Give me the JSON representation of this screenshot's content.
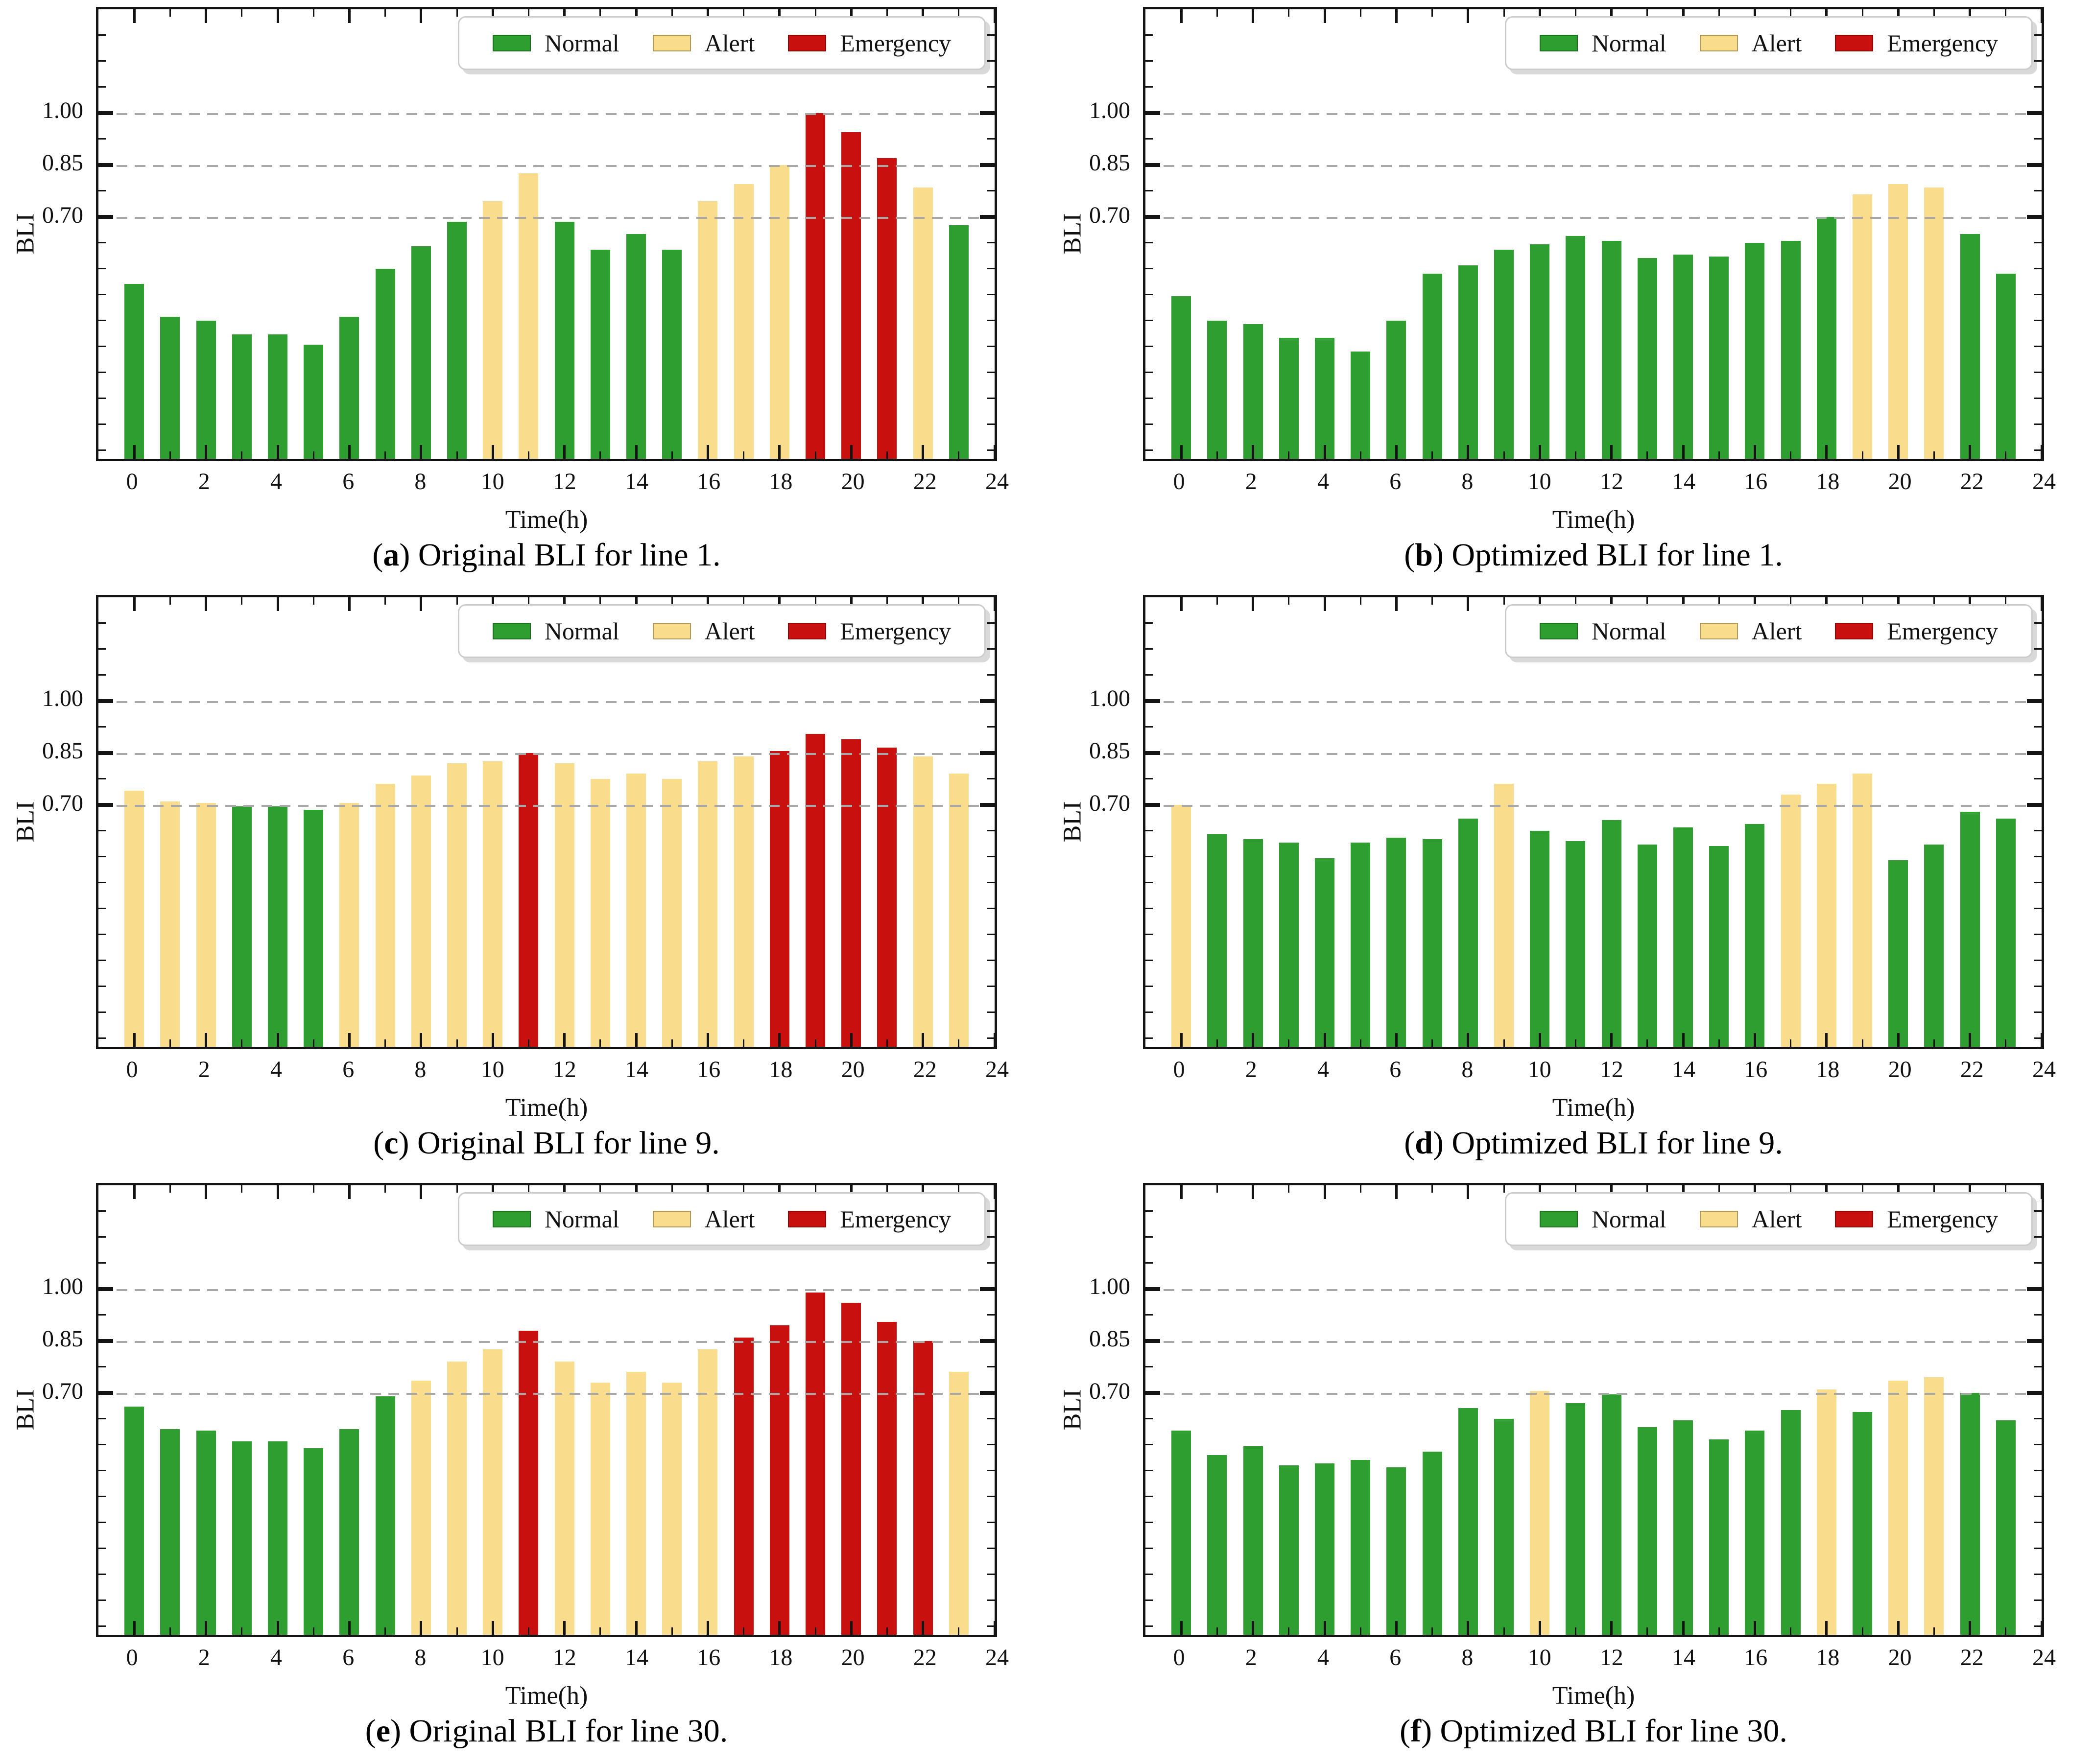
{
  "figure": {
    "background": "#FFFFFF",
    "layout": "2x3-grid-of-bar-charts"
  },
  "legend": {
    "labels": [
      "Normal",
      "Alert",
      "Emergency"
    ],
    "position": "upper right"
  },
  "axis": {
    "xlabel": "Time(h)",
    "ylabel": "BLI",
    "xticks": [
      0,
      2,
      4,
      6,
      8,
      10,
      12,
      14,
      16,
      18,
      20,
      22,
      24
    ],
    "minor_xticks": [
      1,
      3,
      5,
      7,
      9,
      11,
      13,
      15,
      17,
      19,
      21,
      23
    ],
    "ytick_labels": [
      "0.70",
      "0.85",
      "1.00"
    ],
    "ytick_values": [
      0.7,
      0.85,
      1.0
    ],
    "ylim": [
      0,
      1.3
    ],
    "xlim": [
      -1,
      24
    ],
    "grid": "horizontal-dashed"
  },
  "colors": {
    "normal": "#2E9E30",
    "alert": "#F9DD8C",
    "emergency": "#C8100F",
    "grid": "#A8A8A8",
    "spine": "#141414",
    "legend_border": "#CCCCCC"
  },
  "chart_data": [
    {
      "id": "a",
      "type": "bar",
      "caption_letter": "a",
      "caption_text": ") Original BLI for line 1.",
      "caption_open": "(",
      "xlabel": "Time(h)",
      "ylabel": "BLI",
      "hours": [
        0,
        1,
        2,
        3,
        4,
        5,
        6,
        7,
        8,
        9,
        10,
        11,
        12,
        13,
        14,
        15,
        16,
        17,
        18,
        19,
        20,
        21,
        22,
        23
      ],
      "values": [
        0.505,
        0.41,
        0.4,
        0.36,
        0.36,
        0.33,
        0.41,
        0.55,
        0.615,
        0.685,
        0.745,
        0.825,
        0.685,
        0.605,
        0.65,
        0.605,
        0.745,
        0.795,
        0.85,
        1.0,
        0.945,
        0.87,
        0.785,
        0.675
      ],
      "status": [
        "normal",
        "normal",
        "normal",
        "normal",
        "normal",
        "normal",
        "normal",
        "normal",
        "normal",
        "normal",
        "alert",
        "alert",
        "normal",
        "normal",
        "normal",
        "normal",
        "alert",
        "alert",
        "alert",
        "emergency",
        "emergency",
        "emergency",
        "alert",
        "normal"
      ]
    },
    {
      "id": "b",
      "type": "bar",
      "caption_letter": "b",
      "caption_text": ") Optimized BLI for line 1.",
      "caption_open": "(",
      "xlabel": "Time(h)",
      "ylabel": "BLI",
      "hours": [
        0,
        1,
        2,
        3,
        4,
        5,
        6,
        7,
        8,
        9,
        10,
        11,
        12,
        13,
        14,
        15,
        16,
        17,
        18,
        19,
        20,
        21,
        22,
        23
      ],
      "values": [
        0.47,
        0.4,
        0.39,
        0.35,
        0.35,
        0.31,
        0.4,
        0.535,
        0.56,
        0.605,
        0.62,
        0.645,
        0.63,
        0.58,
        0.59,
        0.585,
        0.625,
        0.63,
        0.7,
        0.765,
        0.795,
        0.785,
        0.65,
        0.535
      ],
      "status": [
        "normal",
        "normal",
        "normal",
        "normal",
        "normal",
        "normal",
        "normal",
        "normal",
        "normal",
        "normal",
        "normal",
        "normal",
        "normal",
        "normal",
        "normal",
        "normal",
        "normal",
        "normal",
        "normal",
        "alert",
        "alert",
        "alert",
        "normal",
        "normal"
      ]
    },
    {
      "id": "c",
      "type": "bar",
      "caption_letter": "c",
      "caption_text": ") Original BLI for line 9.",
      "caption_open": "(",
      "xlabel": "Time(h)",
      "ylabel": "BLI",
      "hours": [
        0,
        1,
        2,
        3,
        4,
        5,
        6,
        7,
        8,
        9,
        10,
        11,
        12,
        13,
        14,
        15,
        16,
        17,
        18,
        19,
        20,
        21,
        22,
        23
      ],
      "values": [
        0.74,
        0.71,
        0.705,
        0.695,
        0.695,
        0.685,
        0.705,
        0.76,
        0.785,
        0.82,
        0.825,
        0.85,
        0.82,
        0.775,
        0.79,
        0.775,
        0.825,
        0.84,
        0.855,
        0.905,
        0.89,
        0.865,
        0.84,
        0.79
      ],
      "status": [
        "alert",
        "alert",
        "alert",
        "normal",
        "normal",
        "normal",
        "alert",
        "alert",
        "alert",
        "alert",
        "alert",
        "emergency",
        "alert",
        "alert",
        "alert",
        "alert",
        "alert",
        "alert",
        "emergency",
        "emergency",
        "emergency",
        "emergency",
        "alert",
        "alert"
      ]
    },
    {
      "id": "d",
      "type": "bar",
      "caption_letter": "d",
      "caption_text": ") Optimized BLI for line 9.",
      "caption_open": "(",
      "xlabel": "Time(h)",
      "ylabel": "BLI",
      "hours": [
        0,
        1,
        2,
        3,
        4,
        5,
        6,
        7,
        8,
        9,
        10,
        11,
        12,
        13,
        14,
        15,
        16,
        17,
        18,
        19,
        20,
        21,
        22,
        23
      ],
      "values": [
        0.7,
        0.615,
        0.6,
        0.59,
        0.545,
        0.59,
        0.605,
        0.6,
        0.66,
        0.76,
        0.625,
        0.595,
        0.655,
        0.585,
        0.635,
        0.58,
        0.645,
        0.73,
        0.76,
        0.79,
        0.54,
        0.585,
        0.68,
        0.66
      ],
      "status": [
        "alert",
        "normal",
        "normal",
        "normal",
        "normal",
        "normal",
        "normal",
        "normal",
        "normal",
        "alert",
        "normal",
        "normal",
        "normal",
        "normal",
        "normal",
        "normal",
        "normal",
        "alert",
        "alert",
        "alert",
        "normal",
        "normal",
        "normal",
        "normal"
      ]
    },
    {
      "id": "e",
      "type": "bar",
      "caption_letter": "e",
      "caption_text": ") Original BLI for line 30.",
      "caption_open": "(",
      "xlabel": "Time(h)",
      "ylabel": "BLI",
      "hours": [
        0,
        1,
        2,
        3,
        4,
        5,
        6,
        7,
        8,
        9,
        10,
        11,
        12,
        13,
        14,
        15,
        16,
        17,
        18,
        19,
        20,
        21,
        22,
        23
      ],
      "values": [
        0.66,
        0.595,
        0.59,
        0.56,
        0.56,
        0.54,
        0.595,
        0.69,
        0.735,
        0.79,
        0.825,
        0.88,
        0.79,
        0.73,
        0.76,
        0.73,
        0.825,
        0.86,
        0.895,
        0.99,
        0.96,
        0.905,
        0.85,
        0.76
      ],
      "status": [
        "normal",
        "normal",
        "normal",
        "normal",
        "normal",
        "normal",
        "normal",
        "normal",
        "alert",
        "alert",
        "alert",
        "emergency",
        "alert",
        "alert",
        "alert",
        "alert",
        "alert",
        "emergency",
        "emergency",
        "emergency",
        "emergency",
        "emergency",
        "emergency",
        "alert"
      ]
    },
    {
      "id": "f",
      "type": "bar",
      "caption_letter": "f",
      "caption_text": ") Optimized BLI for line 30.",
      "caption_open": "(",
      "xlabel": "Time(h)",
      "ylabel": "BLI",
      "hours": [
        0,
        1,
        2,
        3,
        4,
        5,
        6,
        7,
        8,
        9,
        10,
        11,
        12,
        13,
        14,
        15,
        16,
        17,
        18,
        19,
        20,
        21,
        22,
        23
      ],
      "values": [
        0.59,
        0.52,
        0.545,
        0.49,
        0.495,
        0.505,
        0.485,
        0.53,
        0.655,
        0.625,
        0.705,
        0.67,
        0.695,
        0.6,
        0.62,
        0.565,
        0.59,
        0.65,
        0.71,
        0.645,
        0.735,
        0.745,
        0.7,
        0.62
      ],
      "status": [
        "normal",
        "normal",
        "normal",
        "normal",
        "normal",
        "normal",
        "normal",
        "normal",
        "normal",
        "normal",
        "alert",
        "normal",
        "normal",
        "normal",
        "normal",
        "normal",
        "normal",
        "normal",
        "alert",
        "normal",
        "alert",
        "alert",
        "normal",
        "normal"
      ]
    }
  ]
}
